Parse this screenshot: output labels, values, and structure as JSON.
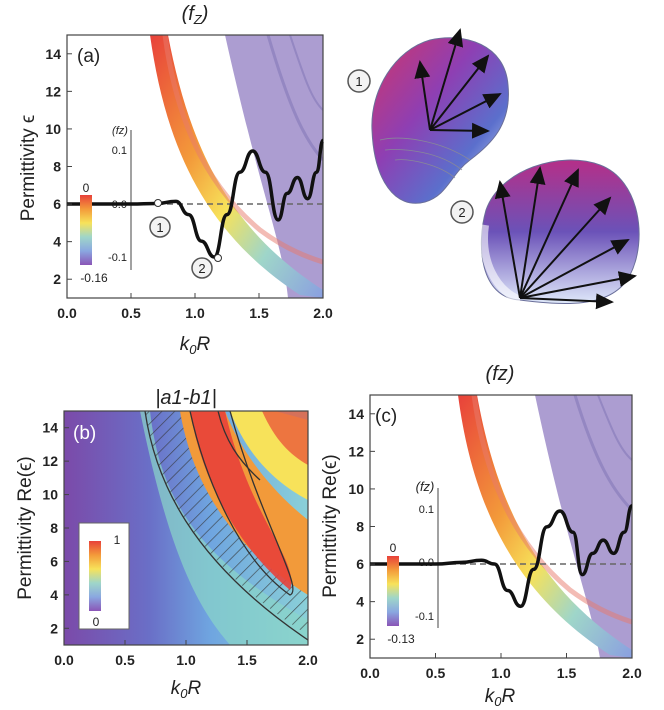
{
  "figure": {
    "panel_a": {
      "title": "(fZ)",
      "title_main": "(f",
      "title_sub": "Z",
      "title_end": ")",
      "label": "(a)",
      "ylabel": "Permittivity ϵ",
      "xlabel_main": "k",
      "xlabel_sub": "0",
      "xlabel_end": "R",
      "inset_label": "(fz)",
      "inset_ticks": [
        "0.1",
        "-0.0",
        "-0.1"
      ],
      "markers": [
        "1",
        "2"
      ],
      "colorbar": {
        "top": "0",
        "bottom": "-0.16"
      }
    },
    "panel_b": {
      "title": "|a1-b1|",
      "label": "(b)",
      "ylabel": "Permittivity Re(ϵ)",
      "xlabel_main": "k",
      "xlabel_sub": "0",
      "xlabel_end": "R",
      "colorbar": {
        "top": "1",
        "bottom": "0"
      }
    },
    "panel_c": {
      "title": "(fz)",
      "label": "(c)",
      "ylabel": "Permittivity Re(ϵ)",
      "xlabel_main": "k",
      "xlabel_sub": "0",
      "xlabel_end": "R",
      "inset_label": "(fz)",
      "inset_ticks": [
        "0.1",
        "0.0",
        "-0.1"
      ],
      "colorbar": {
        "top": "0",
        "bottom": "-0.13"
      }
    },
    "shapes": {
      "label1": "1",
      "label2": "2"
    }
  },
  "chart_data": [
    {
      "type": "heatmap",
      "panel": "(a)",
      "title": "(fZ)",
      "xlabel": "k0R",
      "ylabel": "Permittivity ϵ",
      "xlim": [
        0.0,
        2.0
      ],
      "ylim": [
        1.0,
        15.0
      ],
      "xticks": [
        "0.0",
        "0.5",
        "1.0",
        "1.5",
        "2.0"
      ],
      "yticks": [
        "2",
        "4",
        "6",
        "8",
        "10",
        "12",
        "14"
      ],
      "reference_line_y": 6,
      "inset_series": {
        "name": "(fz)",
        "x": [
          0.0,
          0.5,
          0.7,
          0.85,
          0.95,
          1.05,
          1.15,
          1.25,
          1.35,
          1.45,
          1.55,
          1.65,
          1.72,
          1.8,
          1.88,
          1.95,
          2.0
        ],
        "y": [
          0.0,
          0.0,
          0.001,
          0.005,
          -0.02,
          -0.07,
          -0.1,
          -0.02,
          0.06,
          0.1,
          0.06,
          -0.03,
          0.02,
          0.05,
          0.01,
          0.06,
          0.12
        ]
      },
      "markers": [
        {
          "label": "1",
          "x": 0.67
        },
        {
          "label": "2",
          "x": 1.12
        }
      ],
      "colorbar_range": [
        -0.16,
        0
      ]
    },
    {
      "type": "heatmap",
      "panel": "(b)",
      "title": "|a1-b1|",
      "xlabel": "k0R",
      "ylabel": "Permittivity Re(ϵ)",
      "xlim": [
        0.0,
        2.0
      ],
      "ylim": [
        1.0,
        15.0
      ],
      "xticks": [
        "0.0",
        "0.5",
        "1.0",
        "1.5",
        "2.0"
      ],
      "yticks": [
        "2",
        "4",
        "6",
        "8",
        "10",
        "12",
        "14"
      ],
      "colorbar_range": [
        0,
        1
      ]
    },
    {
      "type": "heatmap",
      "panel": "(c)",
      "title": "(fz)",
      "xlabel": "k0R",
      "ylabel": "Permittivity Re(ϵ)",
      "xlim": [
        0.0,
        2.0
      ],
      "ylim": [
        1.0,
        15.0
      ],
      "xticks": [
        "0.0",
        "0.5",
        "1.0",
        "1.5",
        "2.0"
      ],
      "yticks": [
        "2",
        "4",
        "6",
        "8",
        "10",
        "12",
        "14"
      ],
      "reference_line_y": 6,
      "inset_series": {
        "name": "(fz)",
        "x": [
          0.0,
          0.5,
          0.7,
          0.85,
          0.95,
          1.05,
          1.15,
          1.25,
          1.35,
          1.45,
          1.55,
          1.62,
          1.7,
          1.78,
          1.86,
          1.94,
          2.0
        ],
        "y": [
          0.0,
          0.0,
          0.003,
          0.007,
          0.0,
          -0.05,
          -0.08,
          -0.01,
          0.07,
          0.1,
          0.06,
          -0.02,
          0.02,
          0.045,
          0.02,
          0.06,
          0.11
        ]
      },
      "colorbar_range": [
        -0.13,
        0
      ]
    }
  ]
}
